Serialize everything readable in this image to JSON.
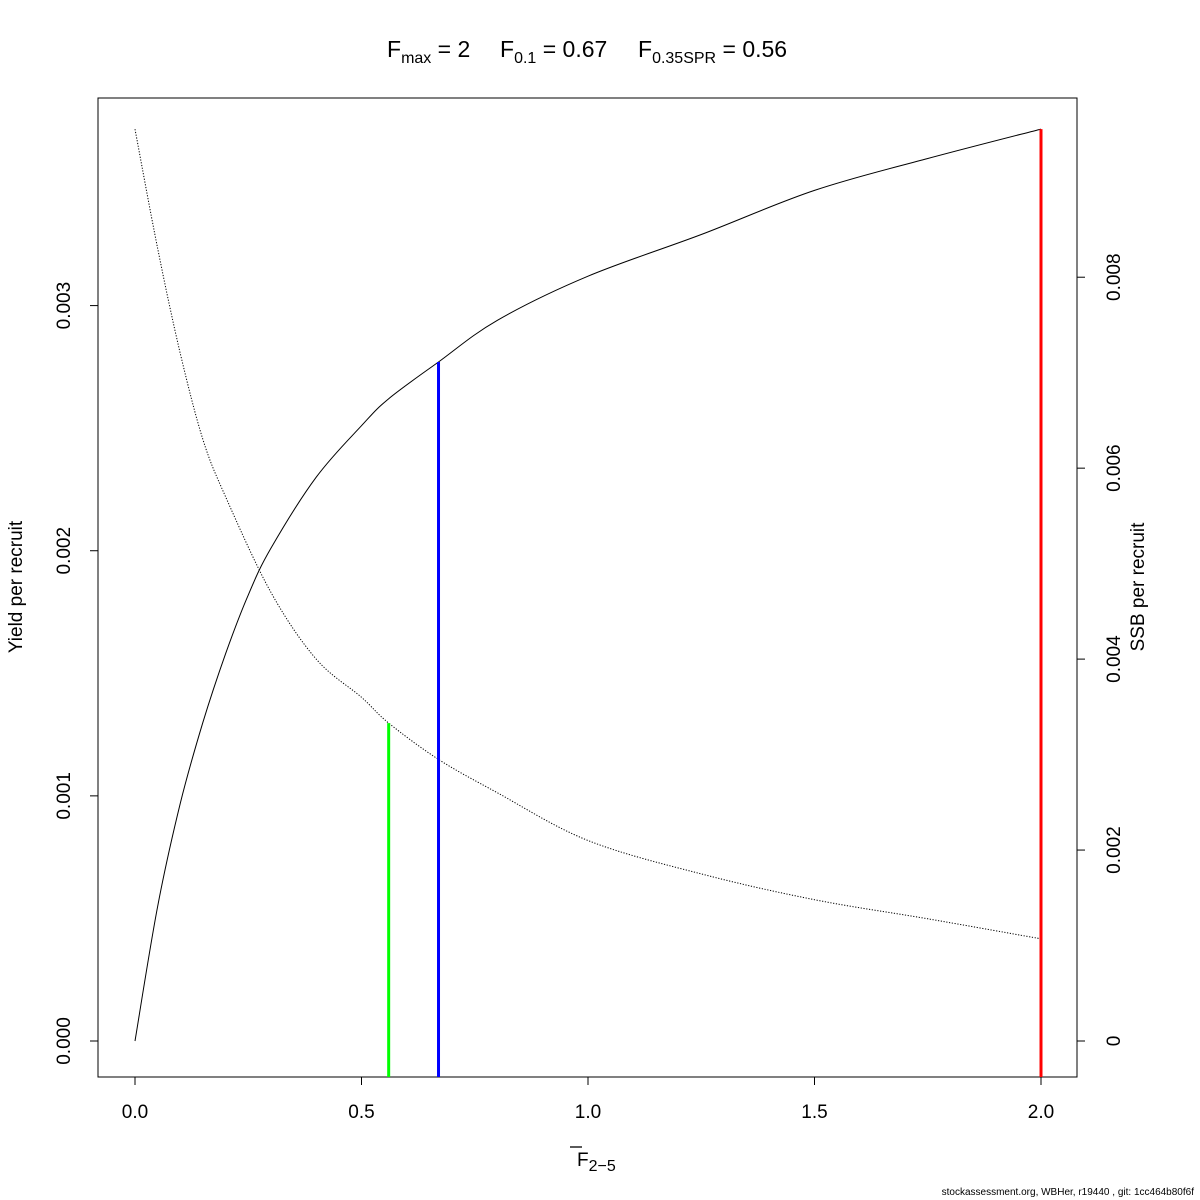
{
  "title": {
    "fmax": {
      "sym": "F",
      "sub": "max",
      "eq": " = 2"
    },
    "f01": {
      "sym": "F",
      "sub": "0.1",
      "eq": " = 0.67"
    },
    "fspr": {
      "sym": "F",
      "sub": "0.35SPR",
      "eq": " = 0.56"
    }
  },
  "footer": "stockassessment.org, WBHer, r19440 , git: 1cc464b80f6f",
  "chart_data": {
    "type": "line",
    "xlabel": {
      "sym": "F",
      "sub": "2−5",
      "overline": true
    },
    "ylabel_left": "Yield per recruit",
    "ylabel_right": "SSB per recruit",
    "xlim": [
      0,
      2
    ],
    "ylim_left": [
      0,
      0.0037
    ],
    "ylim_right": [
      0,
      0.0095
    ],
    "x_ticks": [
      0,
      0.5,
      1,
      1.5,
      2
    ],
    "x_tick_labels": [
      "0.0",
      "0.5",
      "1.0",
      "1.5",
      "2.0"
    ],
    "y_left_ticks": [
      0,
      0.001,
      0.002,
      0.003
    ],
    "y_left_tick_labels": [
      "0.000",
      "0.001",
      "0.002",
      "0.003"
    ],
    "y_right_ticks": [
      0,
      0.002,
      0.004,
      0.006,
      0.008
    ],
    "y_right_tick_labels": [
      "0",
      "0.002",
      "0.004",
      "0.006",
      "0.008"
    ],
    "series": [
      {
        "name": "Yield per recruit",
        "axis": "left",
        "style": "solid",
        "color": "#000000",
        "x": [
          0,
          0.05,
          0.1,
          0.15,
          0.2,
          0.25,
          0.3,
          0.4,
          0.5,
          0.56,
          0.67,
          0.8,
          1.0,
          1.25,
          1.5,
          1.75,
          2.0
        ],
        "y": [
          0.0,
          0.00055,
          0.00097,
          0.0013,
          0.00158,
          0.00182,
          0.00201,
          0.0023,
          0.00251,
          0.00262,
          0.00277,
          0.00294,
          0.00312,
          0.00329,
          0.00347,
          0.0036,
          0.00372
        ]
      },
      {
        "name": "SSB per recruit",
        "axis": "right",
        "style": "dotted",
        "color": "#000000",
        "x": [
          0,
          0.05,
          0.1,
          0.15,
          0.2,
          0.3,
          0.4,
          0.5,
          0.56,
          0.67,
          0.8,
          1.0,
          1.25,
          1.5,
          1.75,
          2.0
        ],
        "y": [
          0.00955,
          0.0083,
          0.0072,
          0.0063,
          0.0057,
          0.0047,
          0.004,
          0.0036,
          0.00333,
          0.00295,
          0.0026,
          0.0021,
          0.00175,
          0.00148,
          0.00128,
          0.00107
        ]
      }
    ],
    "reference_lines": [
      {
        "label": "F0.35SPR",
        "x": 0.56,
        "axis": "right",
        "y_top": 0.00333,
        "color": "#00ff00"
      },
      {
        "label": "F0.1",
        "x": 0.67,
        "axis": "left",
        "y_top": 0.00277,
        "color": "#0000ff"
      },
      {
        "label": "Fmax",
        "x": 2.0,
        "axis": "left",
        "y_top": 0.00372,
        "color": "#ff0000"
      }
    ],
    "grid": false,
    "legend": "none"
  }
}
